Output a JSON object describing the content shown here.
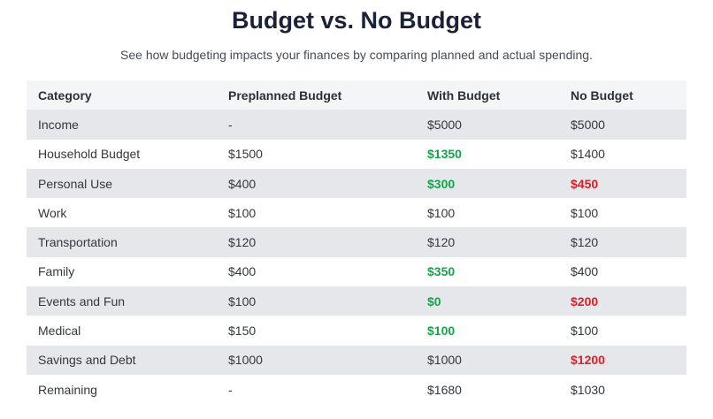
{
  "header": {
    "title": "Budget vs. No Budget",
    "subtitle": "See how budgeting impacts your finances by comparing planned and actual spending."
  },
  "colors": {
    "good": "#17a34a",
    "bad": "#dc1f26",
    "stripe": "#e6e7eb",
    "header_bg": "#f4f5f7"
  },
  "table": {
    "columns": [
      "Category",
      "Preplanned Budget",
      "With Budget",
      "No Budget"
    ],
    "rows": [
      {
        "category": "Income",
        "preplanned": "-",
        "with_budget": "$5000",
        "with_status": "",
        "no_budget": "$5000",
        "no_status": ""
      },
      {
        "category": "Household Budget",
        "preplanned": "$1500",
        "with_budget": "$1350",
        "with_status": "good",
        "no_budget": "$1400",
        "no_status": ""
      },
      {
        "category": "Personal Use",
        "preplanned": "$400",
        "with_budget": "$300",
        "with_status": "good",
        "no_budget": "$450",
        "no_status": "bad"
      },
      {
        "category": "Work",
        "preplanned": "$100",
        "with_budget": "$100",
        "with_status": "",
        "no_budget": "$100",
        "no_status": ""
      },
      {
        "category": "Transportation",
        "preplanned": "$120",
        "with_budget": "$120",
        "with_status": "",
        "no_budget": "$120",
        "no_status": ""
      },
      {
        "category": "Family",
        "preplanned": "$400",
        "with_budget": "$350",
        "with_status": "good",
        "no_budget": "$400",
        "no_status": ""
      },
      {
        "category": "Events and Fun",
        "preplanned": "$100",
        "with_budget": "$0",
        "with_status": "good",
        "no_budget": "$200",
        "no_status": "bad"
      },
      {
        "category": "Medical",
        "preplanned": "$150",
        "with_budget": "$100",
        "with_status": "good",
        "no_budget": "$100",
        "no_status": ""
      },
      {
        "category": "Savings and Debt",
        "preplanned": "$1000",
        "with_budget": "$1000",
        "with_status": "",
        "no_budget": "$1200",
        "no_status": "bad"
      },
      {
        "category": "Remaining",
        "preplanned": "-",
        "with_budget": "$1680",
        "with_status": "",
        "no_budget": "$1030",
        "no_status": ""
      }
    ]
  }
}
